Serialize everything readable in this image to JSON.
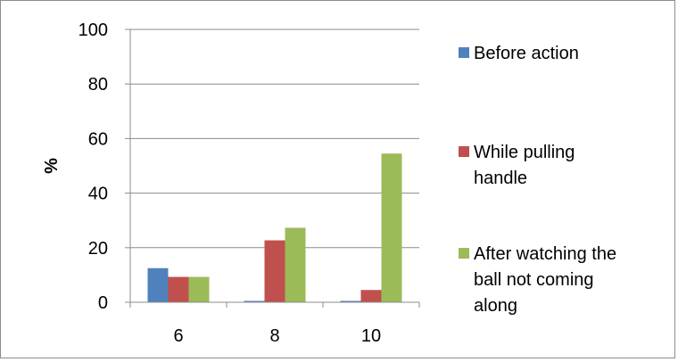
{
  "chart_data": {
    "type": "bar",
    "categories": [
      "6",
      "8",
      "10"
    ],
    "series": [
      {
        "name": "Before action",
        "values": [
          12.5,
          0.5,
          0.5
        ],
        "color": "#4f81bd"
      },
      {
        "name": "While pulling handle",
        "values": [
          9.3,
          22.7,
          4.5
        ],
        "color": "#c0504d"
      },
      {
        "name": "After watching the ball not coming along",
        "values": [
          9.3,
          27.3,
          54.5
        ],
        "color": "#9bbb59"
      }
    ],
    "ylabel": "%",
    "ylim": [
      0,
      100
    ],
    "yticks": [
      "0",
      "20",
      "40",
      "60",
      "80",
      "100"
    ],
    "grid": true,
    "legend": "right",
    "legend_lines": [
      [
        "Before action"
      ],
      [
        "While pulling",
        "handle"
      ],
      [
        "After watching the",
        "ball not coming",
        "along"
      ]
    ]
  }
}
